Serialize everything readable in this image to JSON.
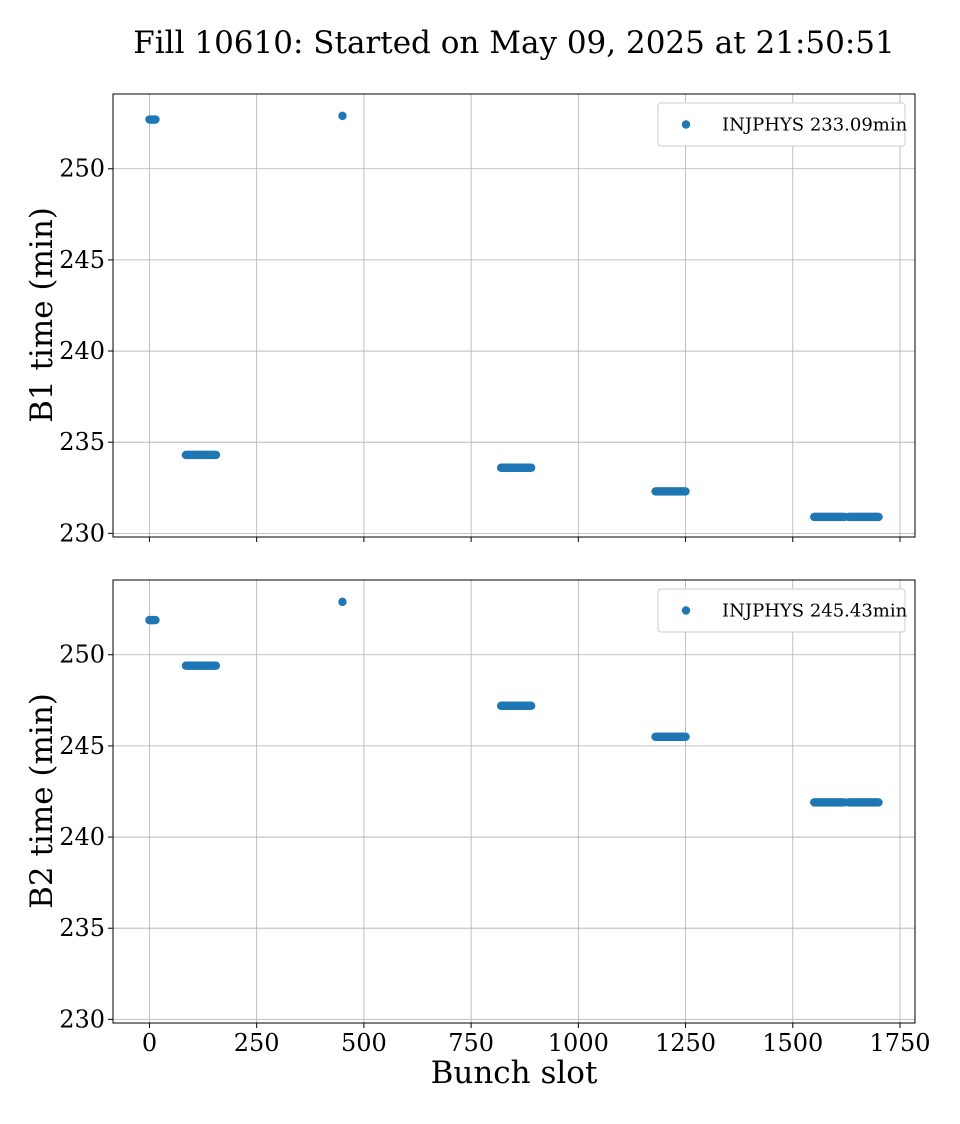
{
  "chart_data": {
    "type": "scatter",
    "title": "Fill 10610: Started on May 09, 2025 at 21:50:51",
    "xlabel": "Bunch slot",
    "xlim": [
      -85,
      1785
    ],
    "xticks": [
      0,
      250,
      500,
      750,
      1000,
      1250,
      1500,
      1750
    ],
    "xtick_labels": [
      "0",
      "250",
      "500",
      "750",
      "1000",
      "1250",
      "1500",
      "1750"
    ],
    "grid": true,
    "marker_color": "#1f77b4",
    "panels": [
      {
        "ylabel": "B1 time (min)",
        "ylim": [
          229.8,
          254.1
        ],
        "yticks": [
          230,
          235,
          240,
          245,
          250
        ],
        "ytick_labels": [
          "230",
          "235",
          "240",
          "245",
          "250"
        ],
        "legend_position": "upper right",
        "series": [
          {
            "name": "INJPHYS 233.09min",
            "segments": [
              {
                "x_start": 0,
                "x_end": 15,
                "y": 252.7
              },
              {
                "x_start": 450,
                "x_end": 450,
                "y": 252.9
              },
              {
                "x_start": 85,
                "x_end": 155,
                "y": 234.3
              },
              {
                "x_start": 820,
                "x_end": 890,
                "y": 233.6
              },
              {
                "x_start": 1180,
                "x_end": 1250,
                "y": 232.3
              },
              {
                "x_start": 1550,
                "x_end": 1620,
                "y": 230.9
              },
              {
                "x_start": 1630,
                "x_end": 1700,
                "y": 230.9
              }
            ]
          }
        ]
      },
      {
        "ylabel": "B2 time (min)",
        "ylim": [
          229.8,
          254.1
        ],
        "yticks": [
          230,
          235,
          240,
          245,
          250
        ],
        "ytick_labels": [
          "230",
          "235",
          "240",
          "245",
          "250"
        ],
        "legend_position": "upper right",
        "series": [
          {
            "name": "INJPHYS 245.43min",
            "segments": [
              {
                "x_start": 0,
                "x_end": 15,
                "y": 251.9
              },
              {
                "x_start": 450,
                "x_end": 450,
                "y": 252.9
              },
              {
                "x_start": 85,
                "x_end": 155,
                "y": 249.4
              },
              {
                "x_start": 820,
                "x_end": 890,
                "y": 247.2
              },
              {
                "x_start": 1180,
                "x_end": 1250,
                "y": 245.5
              },
              {
                "x_start": 1550,
                "x_end": 1620,
                "y": 241.9
              },
              {
                "x_start": 1630,
                "x_end": 1700,
                "y": 241.9
              }
            ]
          }
        ]
      }
    ]
  }
}
